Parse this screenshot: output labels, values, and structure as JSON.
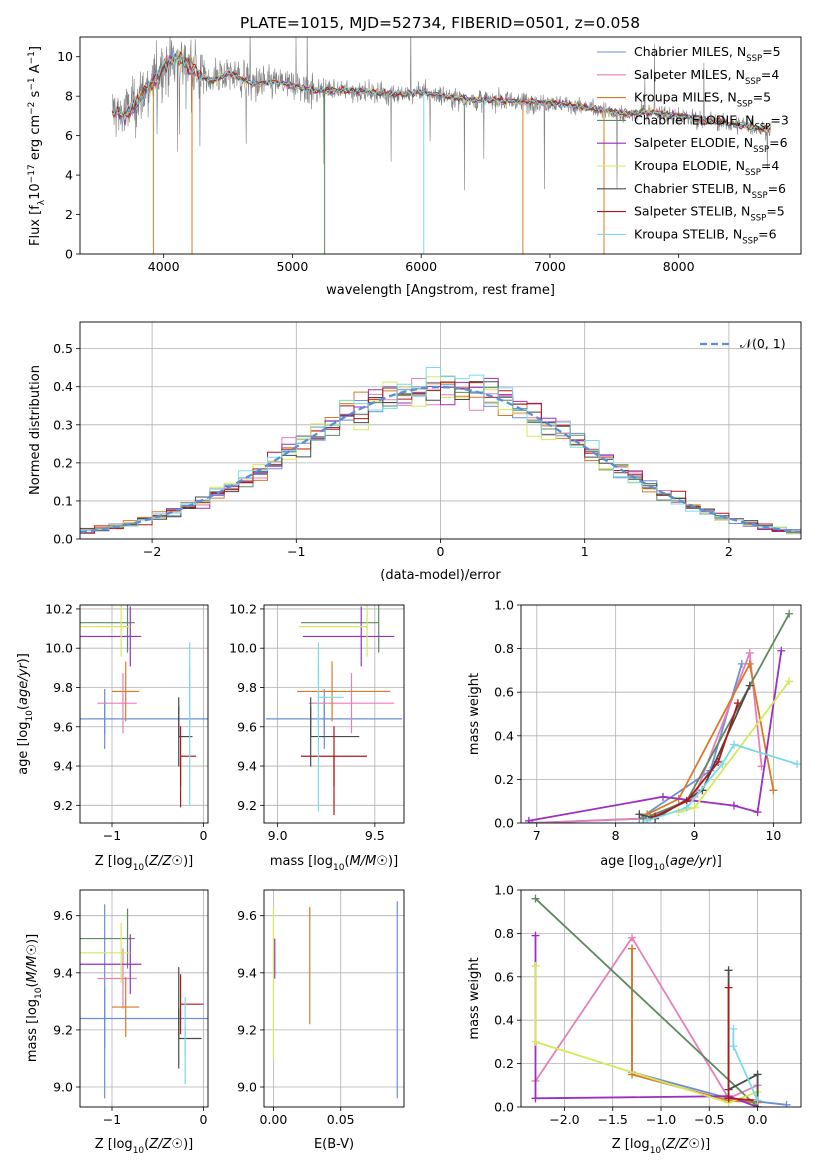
{
  "figure": {
    "title": "PLATE=1015, MJD=52734, FIBERID=0501, z=0.058"
  },
  "models": [
    {
      "label": "Chabrier MILES, N",
      "sub": "SSP",
      "tail": "=5",
      "color": "#6a8fd8"
    },
    {
      "label": "Salpeter MILES, N",
      "sub": "SSP",
      "tail": "=4",
      "color": "#e87fb8"
    },
    {
      "label": "Kroupa MILES, N",
      "sub": "SSP",
      "tail": "=5",
      "color": "#d97a28"
    },
    {
      "label": "Chabrier ELODIE, N",
      "sub": "SSP",
      "tail": "=3",
      "color": "#5f8a5f"
    },
    {
      "label": "Salpeter ELODIE, N",
      "sub": "SSP",
      "tail": "=6",
      "color": "#9a2fc0"
    },
    {
      "label": "Kroupa ELODIE, N",
      "sub": "SSP",
      "tail": "=4",
      "color": "#d6e85a"
    },
    {
      "label": "Chabrier STELIB, N",
      "sub": "SSP",
      "tail": "=6",
      "color": "#4a4a4a"
    },
    {
      "label": "Salpeter STELIB, N",
      "sub": "SSP",
      "tail": "=5",
      "color": "#b01818"
    },
    {
      "label": "Kroupa STELIB, N",
      "sub": "SSP",
      "tail": "=6",
      "color": "#7adbe6"
    }
  ],
  "chart_data": [
    {
      "id": "spectrum",
      "type": "line",
      "xlabel": "wavelength [Angstrom, rest frame]",
      "ylabel_parts": [
        "Flux [f",
        "λ",
        "10",
        "−17",
        " erg cm",
        "−2",
        " s",
        "−1",
        " A",
        "−1",
        "]"
      ],
      "xlim": [
        3350,
        8950
      ],
      "ylim": [
        0,
        11
      ],
      "xticks": [
        4000,
        5000,
        6000,
        7000,
        8000
      ],
      "yticks": [
        0,
        2,
        4,
        6,
        8,
        10
      ],
      "data_color": "#808080",
      "continuum": [
        [
          3600,
          7.3
        ],
        [
          3700,
          7.0
        ],
        [
          3800,
          7.8
        ],
        [
          3900,
          8.6
        ],
        [
          4000,
          9.5
        ],
        [
          4100,
          10.0
        ],
        [
          4200,
          9.5
        ],
        [
          4300,
          9.0
        ],
        [
          4400,
          8.8
        ],
        [
          4500,
          9.2
        ],
        [
          4600,
          8.9
        ],
        [
          4700,
          8.6
        ],
        [
          4800,
          8.7
        ],
        [
          4900,
          8.7
        ],
        [
          5000,
          8.5
        ],
        [
          5200,
          8.3
        ],
        [
          5400,
          8.3
        ],
        [
          5600,
          8.2
        ],
        [
          5800,
          8.1
        ],
        [
          6000,
          8.2
        ],
        [
          6200,
          8.0
        ],
        [
          6400,
          7.8
        ],
        [
          6600,
          7.8
        ],
        [
          6800,
          7.7
        ],
        [
          7000,
          7.7
        ],
        [
          7200,
          7.5
        ],
        [
          7400,
          7.3
        ],
        [
          7600,
          7.1
        ],
        [
          7800,
          7.2
        ],
        [
          8000,
          7.0
        ],
        [
          8200,
          6.8
        ],
        [
          8400,
          6.6
        ],
        [
          8600,
          6.4
        ],
        [
          8700,
          6.3
        ]
      ]
    },
    {
      "id": "residuals",
      "type": "histogram",
      "xlabel": "(data-model)/error",
      "ylabel": "Normed distribution",
      "xlim": [
        -2.5,
        2.5
      ],
      "ylim": [
        0,
        0.57
      ],
      "xticks": [
        -2,
        -1,
        0,
        1,
        2
      ],
      "yticks": [
        0.0,
        0.1,
        0.2,
        0.3,
        0.4,
        0.5
      ],
      "legend": "𝒩(0, 1)",
      "legend_color": "#5a8fd6",
      "bin_width": 0.1
    },
    {
      "id": "age-vs-Z",
      "type": "errorbar",
      "xlabel": "Z [log10(Z/Z☉)]",
      "ylabel": "age  [log10(age/yr)]",
      "xlim": [
        -1.35,
        0.05
      ],
      "ylim": [
        9.11,
        10.22
      ],
      "xticks": [
        -1,
        0
      ],
      "yticks": [
        9.2,
        9.4,
        9.6,
        9.8,
        10.0,
        10.2
      ],
      "points": [
        {
          "x": -1.08,
          "y": 9.64,
          "xerr": [
            1.2,
            1.18
          ],
          "yerr": [
            0.08,
            0.09
          ]
        },
        {
          "x": -0.88,
          "y": 9.72,
          "xerr": [
            0.28,
            0.15
          ],
          "yerr": [
            0.0,
            0.0
          ]
        },
        {
          "x": -0.85,
          "y": 9.78,
          "xerr": [
            0.15,
            0.15
          ],
          "yerr": [
            0.0,
            0.0
          ]
        },
        {
          "x": -0.83,
          "y": 10.13,
          "xerr": [
            1.25,
            0.08
          ],
          "yerr": [
            0.0,
            0.0
          ]
        },
        {
          "x": -0.8,
          "y": 10.06,
          "xerr": [
            0.95,
            0.12
          ],
          "yerr": [
            0.0,
            0.0
          ]
        },
        {
          "x": -0.9,
          "y": 10.11,
          "xerr": [
            1.08,
            0.1
          ],
          "yerr": [
            0.0,
            0.0
          ]
        },
        {
          "x": -0.27,
          "y": 9.55,
          "xerr": [
            0.0,
            0.15
          ],
          "yerr": [
            0.0,
            0.2
          ]
        },
        {
          "x": -0.25,
          "y": 9.45,
          "xerr": [
            0.0,
            0.17
          ],
          "yerr": [
            0.26,
            0.0
          ]
        },
        {
          "x": -0.15,
          "y": 9.75,
          "xerr": [
            0.0,
            0.0
          ],
          "yerr": [
            0.55,
            0.28
          ]
        }
      ]
    },
    {
      "id": "age-vs-mass",
      "type": "errorbar",
      "xlabel": "mass [log10(M/M☉)]",
      "xlim": [
        8.93,
        9.65
      ],
      "ylim": [
        9.11,
        10.22
      ],
      "xticks": [
        9.0,
        9.5
      ],
      "yticks": [
        9.2,
        9.4,
        9.6,
        9.8,
        10.0,
        10.2
      ],
      "points": [
        {
          "x": 9.24,
          "y": 9.64,
          "xerr": [
            0.3,
            0.4
          ],
          "yerr": [
            0.08,
            0.09
          ]
        },
        {
          "x": 9.38,
          "y": 9.72,
          "xerr": [
            0.22,
            0.22
          ],
          "yerr": [
            0.0,
            0.0
          ]
        },
        {
          "x": 9.28,
          "y": 9.78,
          "xerr": [
            0.18,
            0.3
          ],
          "yerr": [
            0.0,
            0.0
          ]
        },
        {
          "x": 9.52,
          "y": 10.13,
          "xerr": [
            0.4,
            0.0
          ],
          "yerr": [
            0.0,
            0.0
          ]
        },
        {
          "x": 9.43,
          "y": 10.06,
          "xerr": [
            0.3,
            0.17
          ],
          "yerr": [
            0.0,
            0.0
          ]
        },
        {
          "x": 9.46,
          "y": 10.11,
          "xerr": [
            0.35,
            0.0
          ],
          "yerr": [
            0.0,
            0.0
          ]
        },
        {
          "x": 9.17,
          "y": 9.55,
          "xerr": [
            0.0,
            0.25
          ],
          "yerr": [
            0.0,
            0.2
          ]
        },
        {
          "x": 9.29,
          "y": 9.45,
          "xerr": [
            0.17,
            0.17
          ],
          "yerr": [
            0.3,
            0.0
          ]
        },
        {
          "x": 9.21,
          "y": 9.75,
          "xerr": [
            0.0,
            0.13
          ],
          "yerr": [
            0.58,
            0.28
          ]
        }
      ]
    },
    {
      "id": "weight-vs-age",
      "type": "line",
      "xlabel": "age  [log10(age/yr)]",
      "ylabel": "mass weight",
      "xlim": [
        6.8,
        10.35
      ],
      "ylim": [
        0,
        1.0
      ],
      "xticks": [
        7,
        8,
        9,
        10
      ],
      "yticks": [
        0.0,
        0.2,
        0.4,
        0.6,
        0.8,
        1.0
      ],
      "series": [
        {
          "x": [
            6.9,
            8.3,
            9.2,
            9.6
          ],
          "y": [
            0.0,
            0.02,
            0.24,
            0.73
          ]
        },
        {
          "x": [
            6.95,
            8.4,
            9.0,
            9.7,
            9.85
          ],
          "y": [
            0.0,
            0.02,
            0.12,
            0.78,
            0.26
          ]
        },
        {
          "x": [
            8.4,
            8.8,
            9.7,
            10.0
          ],
          "y": [
            0.04,
            0.11,
            0.73,
            0.15
          ]
        },
        {
          "x": [
            8.35,
            8.9,
            10.2
          ],
          "y": [
            0.02,
            0.1,
            0.96
          ]
        },
        {
          "x": [
            6.9,
            8.6,
            9.5,
            9.8,
            10.1
          ],
          "y": [
            0.01,
            0.12,
            0.08,
            0.05,
            0.79
          ]
        },
        {
          "x": [
            8.8,
            9.0,
            10.2
          ],
          "y": [
            0.05,
            0.07,
            0.65
          ]
        },
        {
          "x": [
            8.3,
            8.5,
            9.1,
            9.7
          ],
          "y": [
            0.04,
            0.02,
            0.15,
            0.63
          ]
        },
        {
          "x": [
            8.5,
            8.9,
            9.3,
            9.55
          ],
          "y": [
            0.03,
            0.1,
            0.28,
            0.55
          ]
        },
        {
          "x": [
            8.4,
            8.9,
            9.35,
            9.5,
            10.3
          ],
          "y": [
            0.01,
            0.07,
            0.27,
            0.36,
            0.27
          ]
        }
      ]
    },
    {
      "id": "mass-vs-Z",
      "type": "errorbar",
      "xlabel": "Z [log10(Z/Z☉)]",
      "ylabel": "mass [log10(M/M☉)]",
      "xlim": [
        -1.35,
        0.05
      ],
      "ylim": [
        8.93,
        9.69
      ],
      "xticks": [
        -1,
        0
      ],
      "yticks": [
        9.0,
        9.2,
        9.4,
        9.6
      ],
      "points": [
        {
          "x": -1.08,
          "y": 9.24,
          "xerr": [
            1.2,
            1.18
          ],
          "yerr": [
            0.28,
            0.4
          ]
        },
        {
          "x": -0.88,
          "y": 9.38,
          "xerr": [
            0.28,
            0.15
          ],
          "yerr": [
            0.0,
            0.0
          ]
        },
        {
          "x": -0.85,
          "y": 9.28,
          "xerr": [
            0.15,
            0.15
          ],
          "yerr": [
            0.0,
            0.0
          ]
        },
        {
          "x": -0.83,
          "y": 9.52,
          "xerr": [
            1.25,
            0.08
          ],
          "yerr": [
            0.0,
            0.0
          ]
        },
        {
          "x": -0.8,
          "y": 9.43,
          "xerr": [
            0.95,
            0.12
          ],
          "yerr": [
            0.0,
            0.0
          ]
        },
        {
          "x": -0.9,
          "y": 9.47,
          "xerr": [
            1.08,
            0.1
          ],
          "yerr": [
            0.0,
            0.0
          ]
        },
        {
          "x": -0.27,
          "y": 9.17,
          "xerr": [
            0.0,
            0.25
          ],
          "yerr": [
            0.0,
            0.25
          ]
        },
        {
          "x": -0.25,
          "y": 9.29,
          "xerr": [
            0.0,
            0.25
          ],
          "yerr": [
            0.0,
            0.0
          ]
        },
        {
          "x": -0.2,
          "y": 9.21,
          "xerr": [
            0.0,
            0.0
          ],
          "yerr": [
            0.2,
            0.0
          ]
        }
      ]
    },
    {
      "id": "mass-vs-ebv",
      "type": "errorbar",
      "xlabel": "E(B-V)",
      "xlim": [
        -0.007,
        0.097
      ],
      "ylim": [
        8.93,
        9.69
      ],
      "xticks": [
        0.0,
        0.05
      ],
      "yticks": [
        9.0,
        9.2,
        9.4,
        9.6
      ],
      "vlines": [
        {
          "x": 0.0,
          "y": [
            9.1,
            9.63
          ]
        },
        {
          "x": 0.027,
          "y": [
            9.22,
            9.63
          ]
        },
        {
          "x": 0.092,
          "y": [
            8.96,
            9.65
          ]
        },
        {
          "x": 0.001,
          "y": [
            9.38,
            9.52
          ]
        }
      ]
    },
    {
      "id": "weight-vs-Z",
      "type": "line",
      "xlabel": "Z [log10(Z/Z☉)]",
      "ylabel": "mass weight",
      "xlim": [
        -2.45,
        0.45
      ],
      "ylim": [
        0,
        1.0
      ],
      "xticks": [
        -2.0,
        -1.5,
        -1.0,
        -0.5,
        0.0
      ],
      "yticks": [
        0.0,
        0.2,
        0.4,
        0.6,
        0.8,
        1.0
      ],
      "series": [
        {
          "x": [
            -1.3,
            -1.3,
            -0.3,
            0.3
          ],
          "y": [
            0.73,
            0.16,
            0.04,
            0.01
          ]
        },
        {
          "x": [
            -2.3,
            -1.3,
            -0.3,
            0.0
          ],
          "y": [
            0.12,
            0.78,
            0.04,
            0.1
          ]
        },
        {
          "x": [
            -1.3,
            -1.3,
            -0.3,
            0.0
          ],
          "y": [
            0.73,
            0.15,
            0.03,
            0.02
          ]
        },
        {
          "x": [
            -2.3,
            0.0
          ],
          "y": [
            0.96,
            0.0
          ]
        },
        {
          "x": [
            -2.3,
            -2.3,
            -0.3,
            0.0
          ],
          "y": [
            0.79,
            0.04,
            0.05,
            0.0
          ]
        },
        {
          "x": [
            -2.3,
            -2.3,
            -0.3,
            0.0
          ],
          "y": [
            0.65,
            0.3,
            0.02,
            0.07
          ]
        },
        {
          "x": [
            -0.3,
            -0.3,
            0.0,
            0.0
          ],
          "y": [
            0.63,
            0.08,
            0.15,
            0.0
          ]
        },
        {
          "x": [
            -0.3,
            -0.3,
            0.0
          ],
          "y": [
            0.55,
            0.04,
            0.03
          ]
        },
        {
          "x": [
            -0.25,
            -0.25,
            0.0
          ],
          "y": [
            0.36,
            0.28,
            0.03
          ]
        }
      ]
    }
  ]
}
